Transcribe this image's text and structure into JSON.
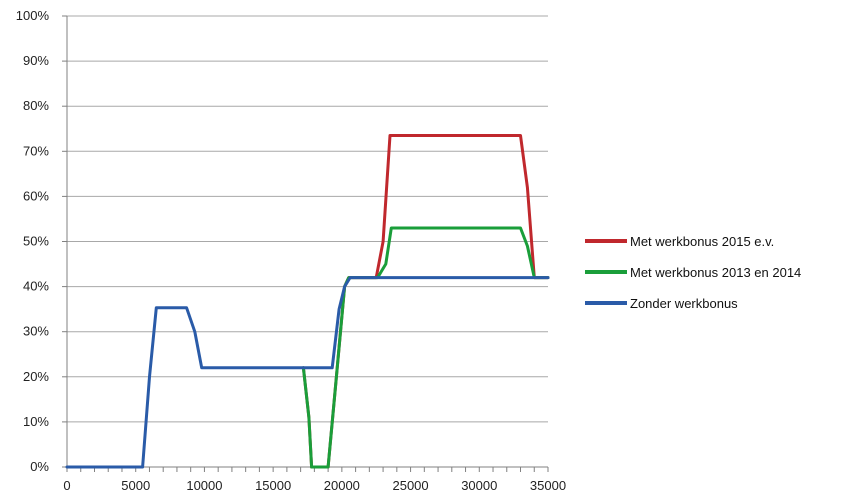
{
  "chart_data": {
    "type": "line",
    "title": "",
    "xlabel": "",
    "ylabel": "",
    "xlim": [
      0,
      35000
    ],
    "ylim": [
      0,
      100
    ],
    "x_ticks": [
      0,
      5000,
      10000,
      15000,
      20000,
      25000,
      30000,
      35000
    ],
    "y_ticks": [
      0,
      10,
      20,
      30,
      40,
      50,
      60,
      70,
      80,
      90,
      100
    ],
    "y_tick_labels": [
      "0%",
      "10%",
      "20%",
      "30%",
      "40%",
      "50%",
      "60%",
      "70%",
      "80%",
      "90%",
      "100%"
    ],
    "x_tick_labels": [
      "0",
      "5000",
      "10000",
      "15000",
      "20000",
      "25000",
      "30000",
      "35000"
    ],
    "grid": "horizontal",
    "legend_position": "right",
    "series": [
      {
        "name": "Met werkbonus 2015 e.v.",
        "color": "#c0282d",
        "points": [
          [
            17200,
            22
          ],
          [
            17600,
            11
          ],
          [
            17800,
            0
          ],
          [
            18200,
            0
          ],
          [
            19000,
            0
          ],
          [
            19600,
            20
          ],
          [
            20200,
            40
          ],
          [
            20500,
            42
          ],
          [
            22500,
            42
          ],
          [
            23000,
            50
          ],
          [
            23500,
            73.5
          ],
          [
            33000,
            73.5
          ],
          [
            33500,
            62
          ],
          [
            34000,
            42
          ],
          [
            35000,
            42
          ]
        ]
      },
      {
        "name": "Met werkbonus 2013 en 2014",
        "color": "#1a9e3a",
        "points": [
          [
            17200,
            22
          ],
          [
            17600,
            11
          ],
          [
            17800,
            0
          ],
          [
            18200,
            0
          ],
          [
            19000,
            0
          ],
          [
            19600,
            20
          ],
          [
            20200,
            40
          ],
          [
            20500,
            42
          ],
          [
            22600,
            42
          ],
          [
            23200,
            45
          ],
          [
            23600,
            53
          ],
          [
            33000,
            53
          ],
          [
            33500,
            49
          ],
          [
            34000,
            42
          ],
          [
            35000,
            42
          ]
        ]
      },
      {
        "name": "Zonder werkbonus",
        "color": "#2a5ba8",
        "points": [
          [
            0,
            0
          ],
          [
            5500,
            0
          ],
          [
            6000,
            20
          ],
          [
            6500,
            35.3
          ],
          [
            8700,
            35.3
          ],
          [
            9300,
            30
          ],
          [
            9800,
            22
          ],
          [
            19300,
            22
          ],
          [
            19800,
            35
          ],
          [
            20200,
            40
          ],
          [
            20600,
            42
          ],
          [
            35000,
            42
          ]
        ]
      }
    ]
  }
}
